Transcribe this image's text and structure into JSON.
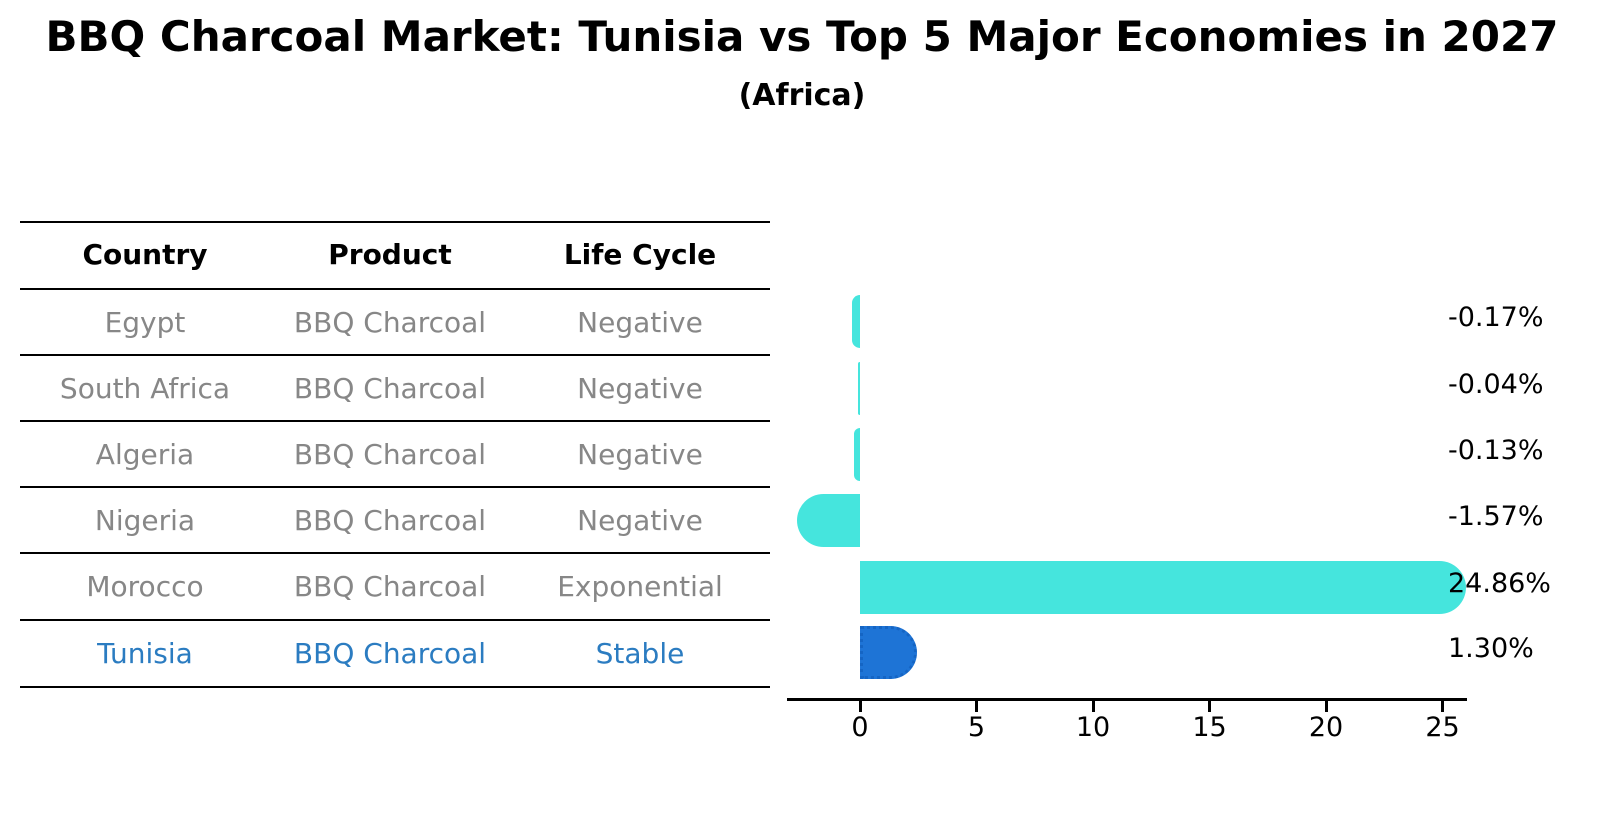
{
  "title": "BBQ Charcoal Market: Tunisia vs Top 5 Major Economies in 2027",
  "subtitle": "(Africa)",
  "table": {
    "headers": {
      "country": "Country",
      "product": "Product",
      "life_cycle": "Life Cycle"
    },
    "rows": [
      {
        "country": "Egypt",
        "product": "BBQ Charcoal",
        "life_cycle": "Negative",
        "highlight": false
      },
      {
        "country": "South Africa",
        "product": "BBQ Charcoal",
        "life_cycle": "Negative",
        "highlight": false
      },
      {
        "country": "Algeria",
        "product": "BBQ Charcoal",
        "life_cycle": "Negative",
        "highlight": false
      },
      {
        "country": "Nigeria",
        "product": "BBQ Charcoal",
        "life_cycle": "Negative",
        "highlight": false
      },
      {
        "country": "Morocco",
        "product": "BBQ Charcoal",
        "life_cycle": "Exponential",
        "highlight": false
      },
      {
        "country": "Tunisia",
        "product": "BBQ Charcoal",
        "life_cycle": "Stable",
        "highlight": true
      }
    ]
  },
  "chart_data": {
    "type": "bar",
    "orientation": "horizontal",
    "title": "BBQ Charcoal Market: Tunisia vs Top 5 Major Economies in 2027",
    "subtitle": "(Africa)",
    "categories": [
      "Egypt",
      "South Africa",
      "Algeria",
      "Nigeria",
      "Morocco",
      "Tunisia"
    ],
    "values": [
      -0.17,
      -0.04,
      -0.13,
      -1.57,
      24.86,
      1.3
    ],
    "value_labels": [
      "-0.17%",
      "-0.04%",
      "-0.13%",
      "-1.57%",
      "24.86%",
      "1.30%"
    ],
    "xticks": [
      0,
      5,
      10,
      15,
      20,
      25
    ],
    "xlim": [
      -3.1,
      26.1
    ],
    "grid": false,
    "legend": "none",
    "bar_color": "#45e5dd",
    "highlight_color": "#1e74d6",
    "highlight_index": 5
  },
  "colors": {
    "background": "#ffffff",
    "table_text": "#878787",
    "header_text": "#000000",
    "highlight_text": "#2b7cc1",
    "bar_cyan": "#45e5dd",
    "bar_blue": "#1e74d6",
    "axis": "#000000"
  }
}
